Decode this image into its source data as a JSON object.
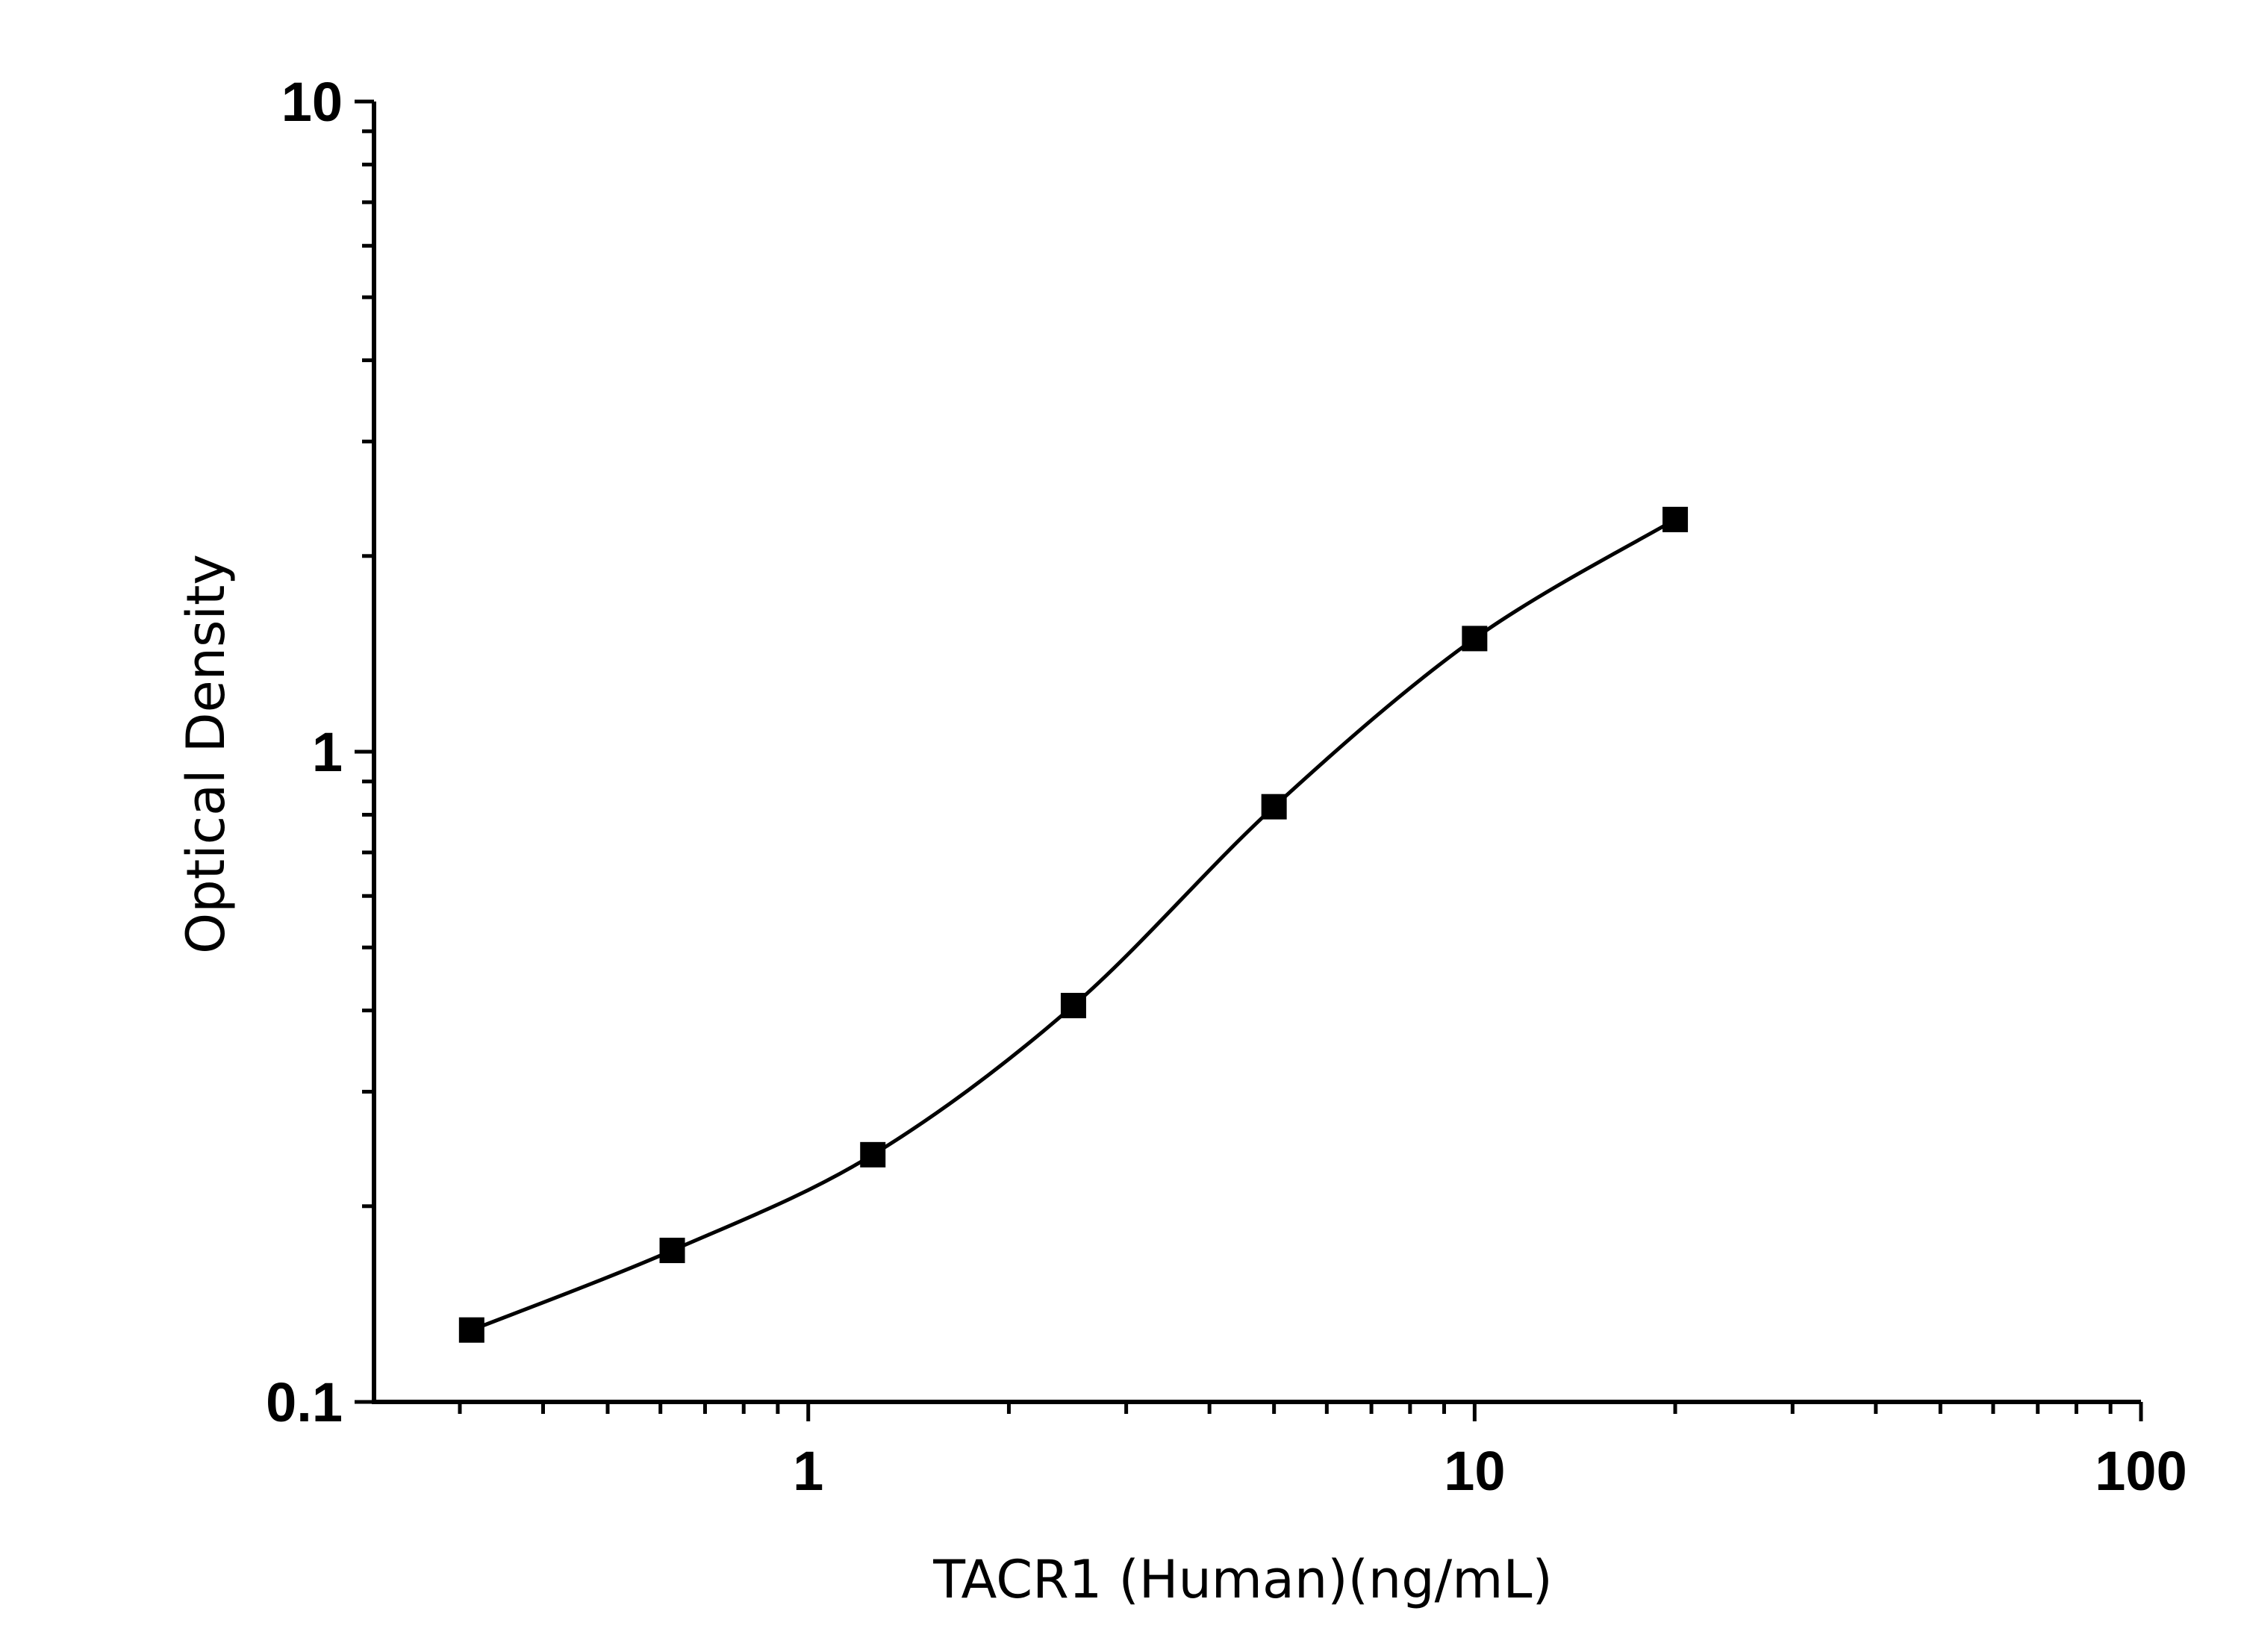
{
  "chart_data": {
    "type": "scatter",
    "title": "",
    "xlabel": "TACR1 (Human)(ng/mL)",
    "ylabel": "Optical Density",
    "xscale": "log",
    "yscale": "log",
    "xlim": [
      0.223,
      100
    ],
    "ylim": [
      0.1,
      10
    ],
    "x_ticks": [
      {
        "value": 1,
        "label": "1"
      },
      {
        "value": 10,
        "label": "10"
      },
      {
        "value": 100,
        "label": "100"
      }
    ],
    "y_ticks": [
      {
        "value": 0.1,
        "label": "0.1"
      },
      {
        "value": 1,
        "label": "1"
      },
      {
        "value": 10,
        "label": "10"
      }
    ],
    "grid": false,
    "marker": "square",
    "fit_line": "smooth curve",
    "color": "#000000",
    "series": [
      {
        "x": [
          0.3125,
          0.625,
          1.25,
          2.5,
          5,
          10,
          20
        ],
        "y": [
          0.129,
          0.171,
          0.24,
          0.407,
          0.823,
          1.493,
          2.276
        ]
      }
    ]
  }
}
